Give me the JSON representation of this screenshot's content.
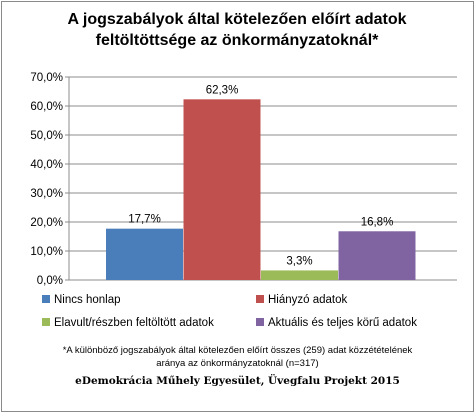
{
  "chart_data": {
    "type": "bar",
    "title_lines": [
      "A jogszabályok által kötelezően előírt adatok",
      "feltöltöttsége az önkormányzatoknál*"
    ],
    "categories": [
      "Nincs honlap",
      "Hiányzó adatok",
      "Elavult/részben feltöltött adatok",
      "Aktuális és teljes körű adatok"
    ],
    "values": [
      17.7,
      62.3,
      3.3,
      16.8
    ],
    "value_labels": [
      "17,7%",
      "62,3%",
      "3,3%",
      "16,8%"
    ],
    "colors": [
      "#4a7ebb",
      "#c0504d",
      "#9bbb59",
      "#8064a2"
    ],
    "ylim": [
      0,
      70
    ],
    "yticks": [
      0,
      10,
      20,
      30,
      40,
      50,
      60,
      70
    ],
    "ytick_labels": [
      "0,0%",
      "10,0%",
      "20,0%",
      "30,0%",
      "40,0%",
      "50,0%",
      "60,0%",
      "70,0%"
    ],
    "grid": true,
    "legend_position": "bottom",
    "xlabel": "",
    "ylabel": ""
  },
  "footnote_lines": [
    "*A különböző jogszabályok által kötelezően előírt összes (259) adat közzétételének",
    "aránya az önkormányzatoknál  (n=317)"
  ],
  "credit": "eDemokrácia Műhely Egyesület, Üvegfalu Projekt 2015"
}
